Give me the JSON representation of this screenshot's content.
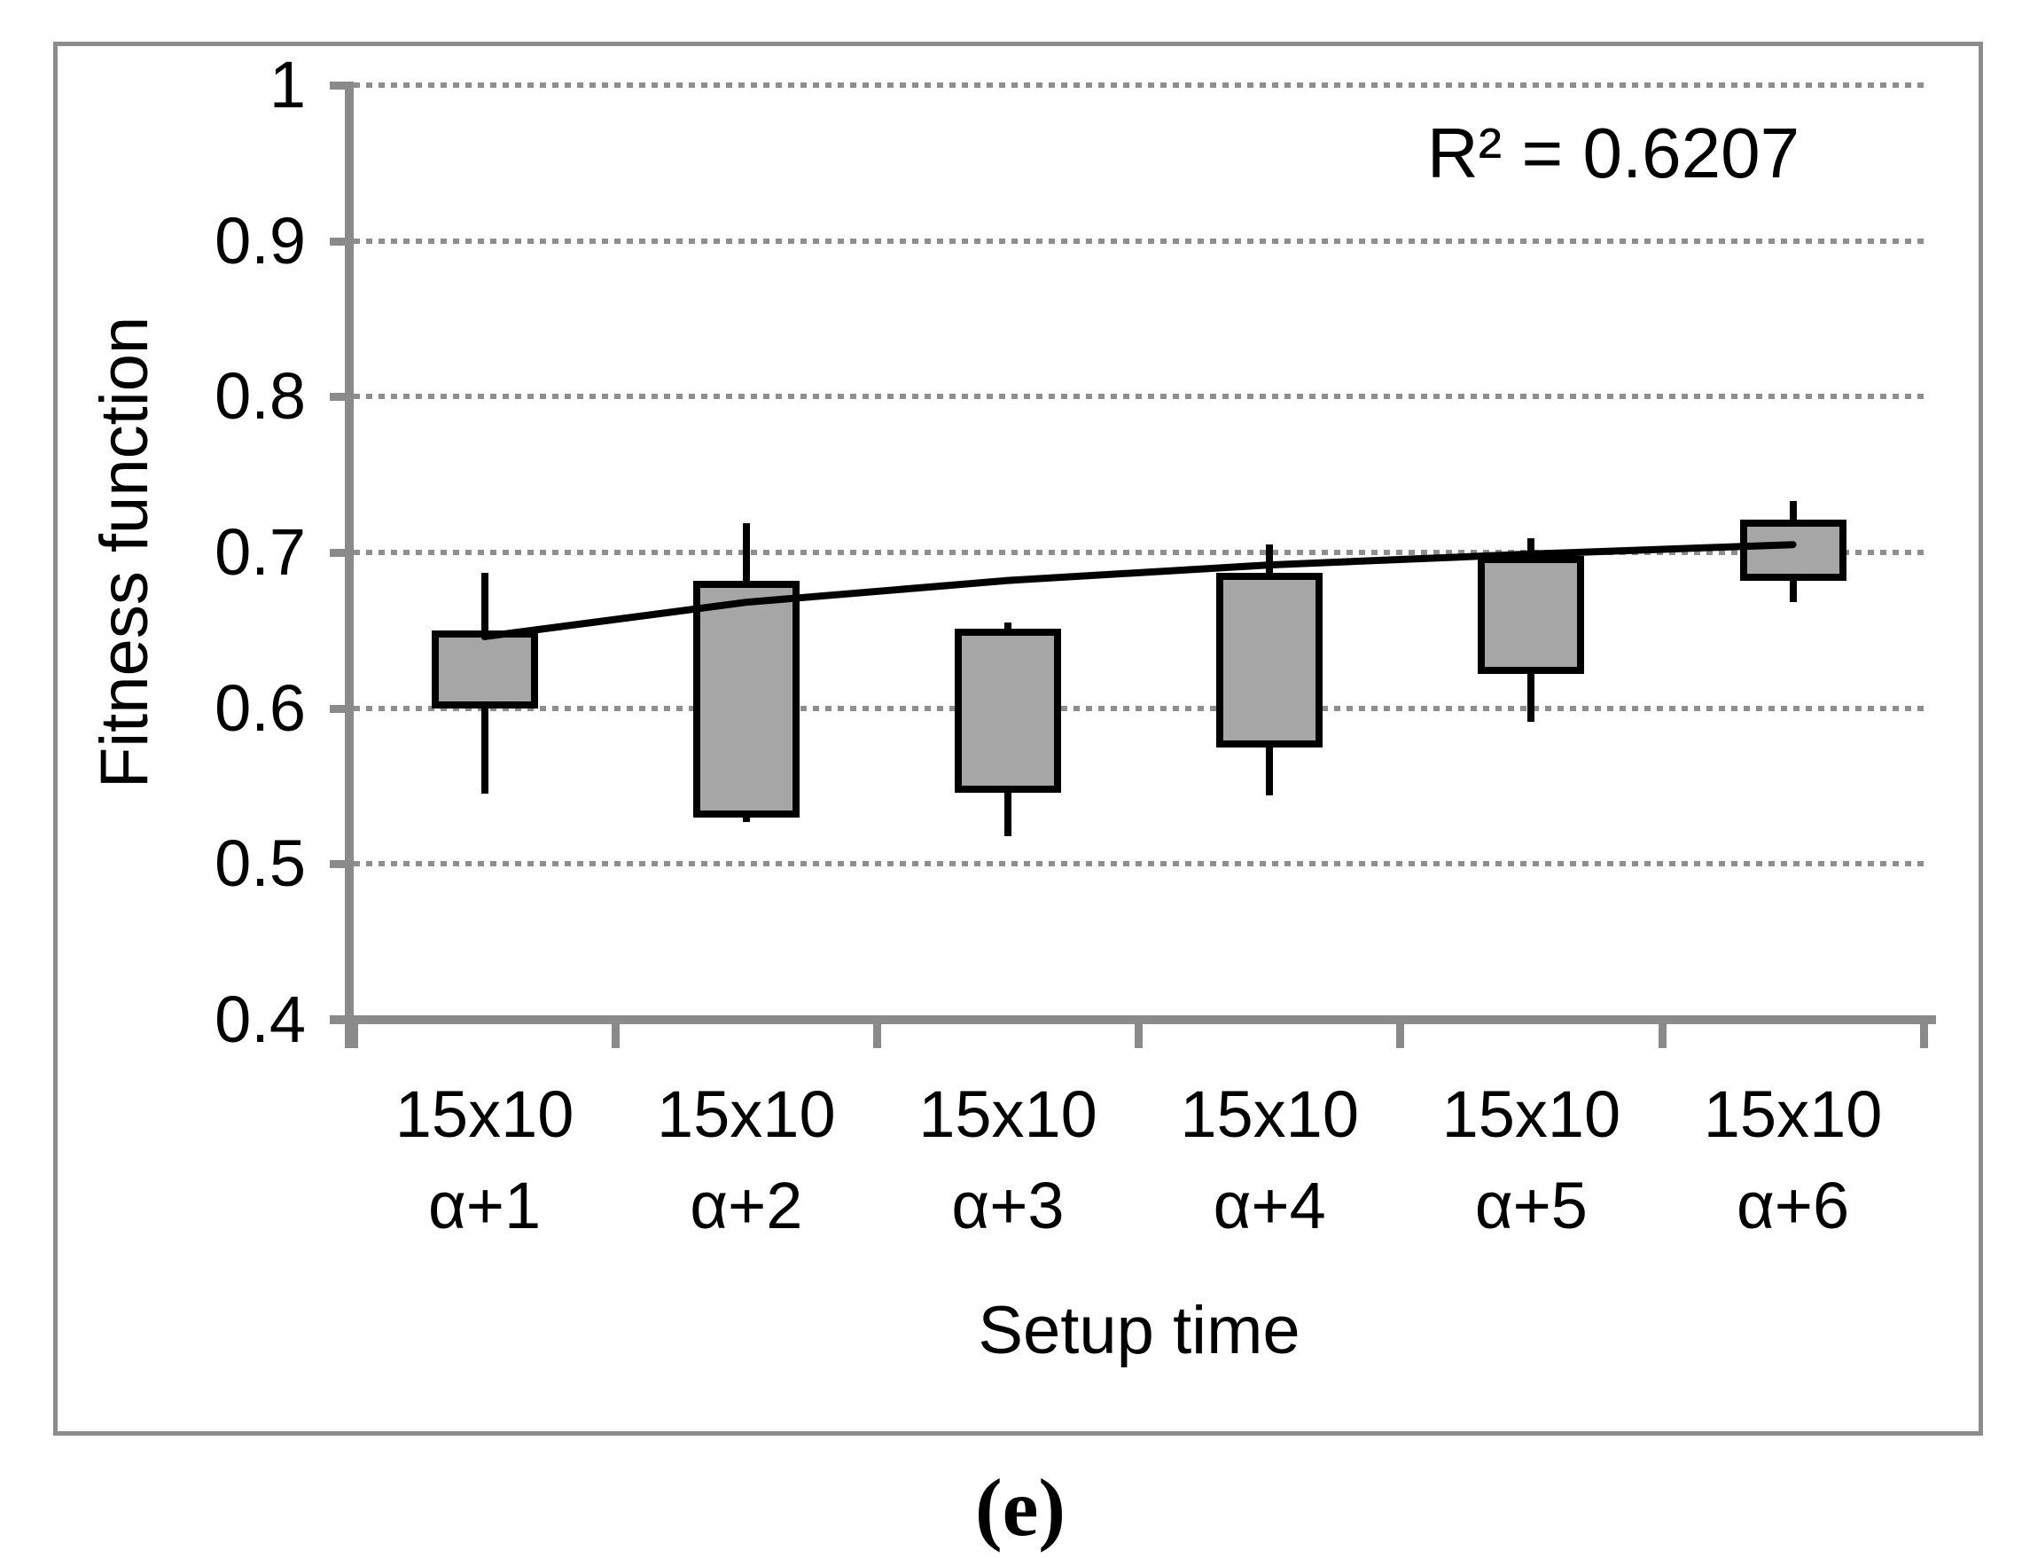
{
  "figure": {
    "caption": {
      "open": "(",
      "letter": "e",
      "close": ")"
    }
  },
  "chart_data": {
    "type": "boxplot",
    "title": "",
    "xlabel": "Setup time",
    "ylabel": "Fitness function",
    "annotation": "R² = 0.6207",
    "ylim": [
      0.4,
      1
    ],
    "grid": "horizontal-dotted",
    "legend": "none",
    "yticks": [
      {
        "value": 1,
        "label": "1"
      },
      {
        "value": 0.9,
        "label": "0.9"
      },
      {
        "value": 0.8,
        "label": "0.8"
      },
      {
        "value": 0.7,
        "label": "0.7"
      },
      {
        "value": 0.6,
        "label": "0.6"
      },
      {
        "value": 0.5,
        "label": "0.5"
      },
      {
        "value": 0.4,
        "label": "0.4"
      }
    ],
    "categories": [
      {
        "line1": "15x10",
        "line2": "α+1"
      },
      {
        "line1": "15x10",
        "line2": "α+2"
      },
      {
        "line1": "15x10",
        "line2": "α+3"
      },
      {
        "line1": "15x10",
        "line2": "α+4"
      },
      {
        "line1": "15x10",
        "line2": "α+5"
      },
      {
        "line1": "15x10",
        "line2": "α+6"
      }
    ],
    "boxes": [
      {
        "category": "15x10 α+1",
        "high": 0.687,
        "box_top": 0.65,
        "box_bottom": 0.6,
        "low": 0.545
      },
      {
        "category": "15x10 α+2",
        "high": 0.719,
        "box_top": 0.682,
        "box_bottom": 0.53,
        "low": 0.527
      },
      {
        "category": "15x10 α+3",
        "high": 0.655,
        "box_top": 0.651,
        "box_bottom": 0.546,
        "low": 0.518
      },
      {
        "category": "15x10 α+4",
        "high": 0.705,
        "box_top": 0.687,
        "box_bottom": 0.575,
        "low": 0.544
      },
      {
        "category": "15x10 α+5",
        "high": 0.709,
        "box_top": 0.698,
        "box_bottom": 0.622,
        "low": 0.591
      },
      {
        "category": "15x10 α+6",
        "high": 0.733,
        "box_top": 0.721,
        "box_bottom": 0.682,
        "low": 0.668
      }
    ],
    "trendline": {
      "shape": "logarithmic",
      "r_squared_label": "R² = 0.6207",
      "values": [
        0.646,
        0.668,
        0.682,
        0.692,
        0.699,
        0.705
      ]
    },
    "colors": {
      "box_fill": "#A6A6A6",
      "box_border": "#000000",
      "whisker": "#000000",
      "trend_line": "#000000",
      "axis": "#8A8A8A",
      "gridline": "#8E8E8E",
      "frame": "#8C8C8C",
      "text": "#000000"
    }
  }
}
